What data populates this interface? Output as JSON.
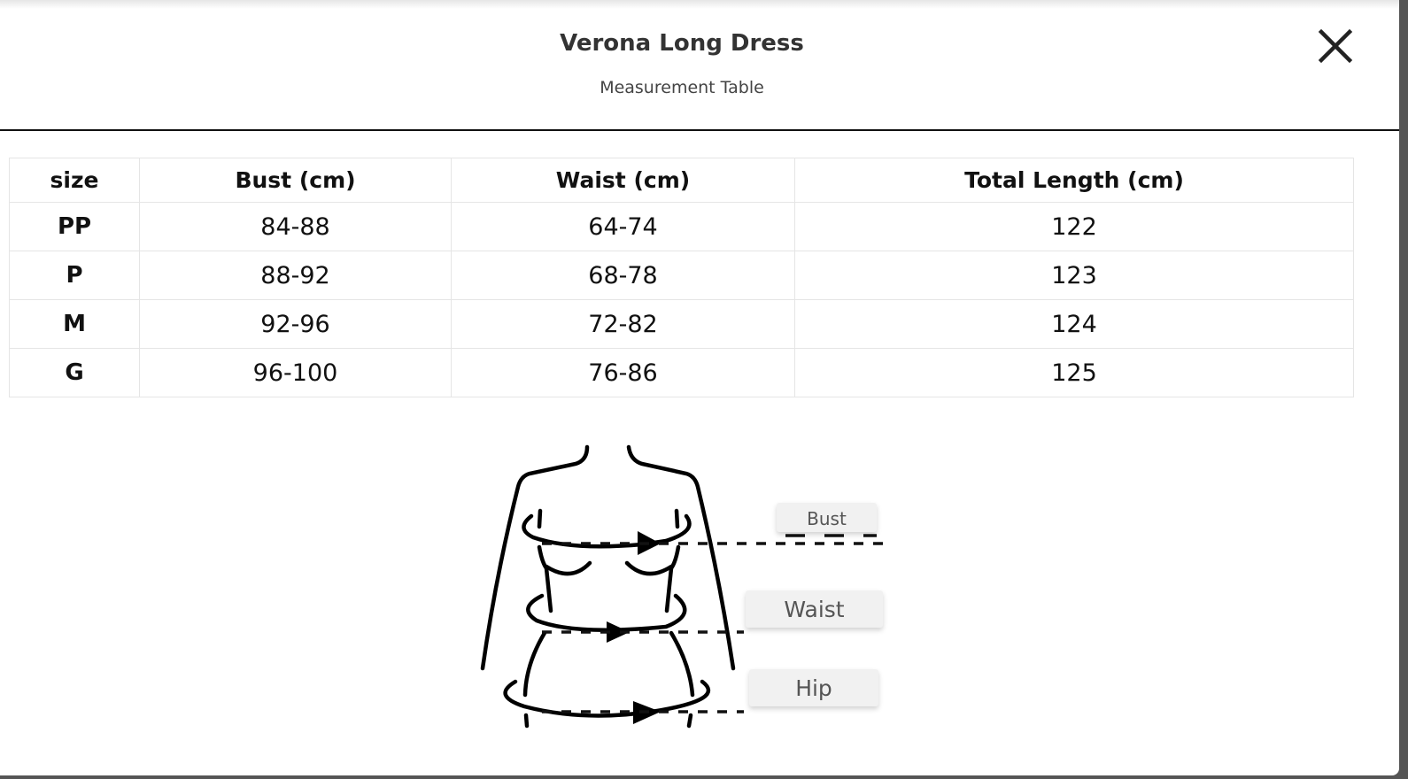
{
  "header": {
    "title": "Verona Long Dress",
    "subtitle": "Measurement Table",
    "close_icon": "close-icon"
  },
  "table": {
    "columns": [
      "size",
      "Bust (cm)",
      "Waist (cm)",
      "Total Length (cm)"
    ],
    "rows": [
      [
        "PP",
        "84-88",
        "64-74",
        "122"
      ],
      [
        "P",
        "88-92",
        "68-78",
        "123"
      ],
      [
        "M",
        "92-96",
        "72-82",
        "124"
      ],
      [
        "G",
        "96-100",
        "76-86",
        "125"
      ]
    ]
  },
  "diagram": {
    "labels": {
      "bust": "Bust",
      "waist": "Waist",
      "hip": "Hip"
    }
  }
}
